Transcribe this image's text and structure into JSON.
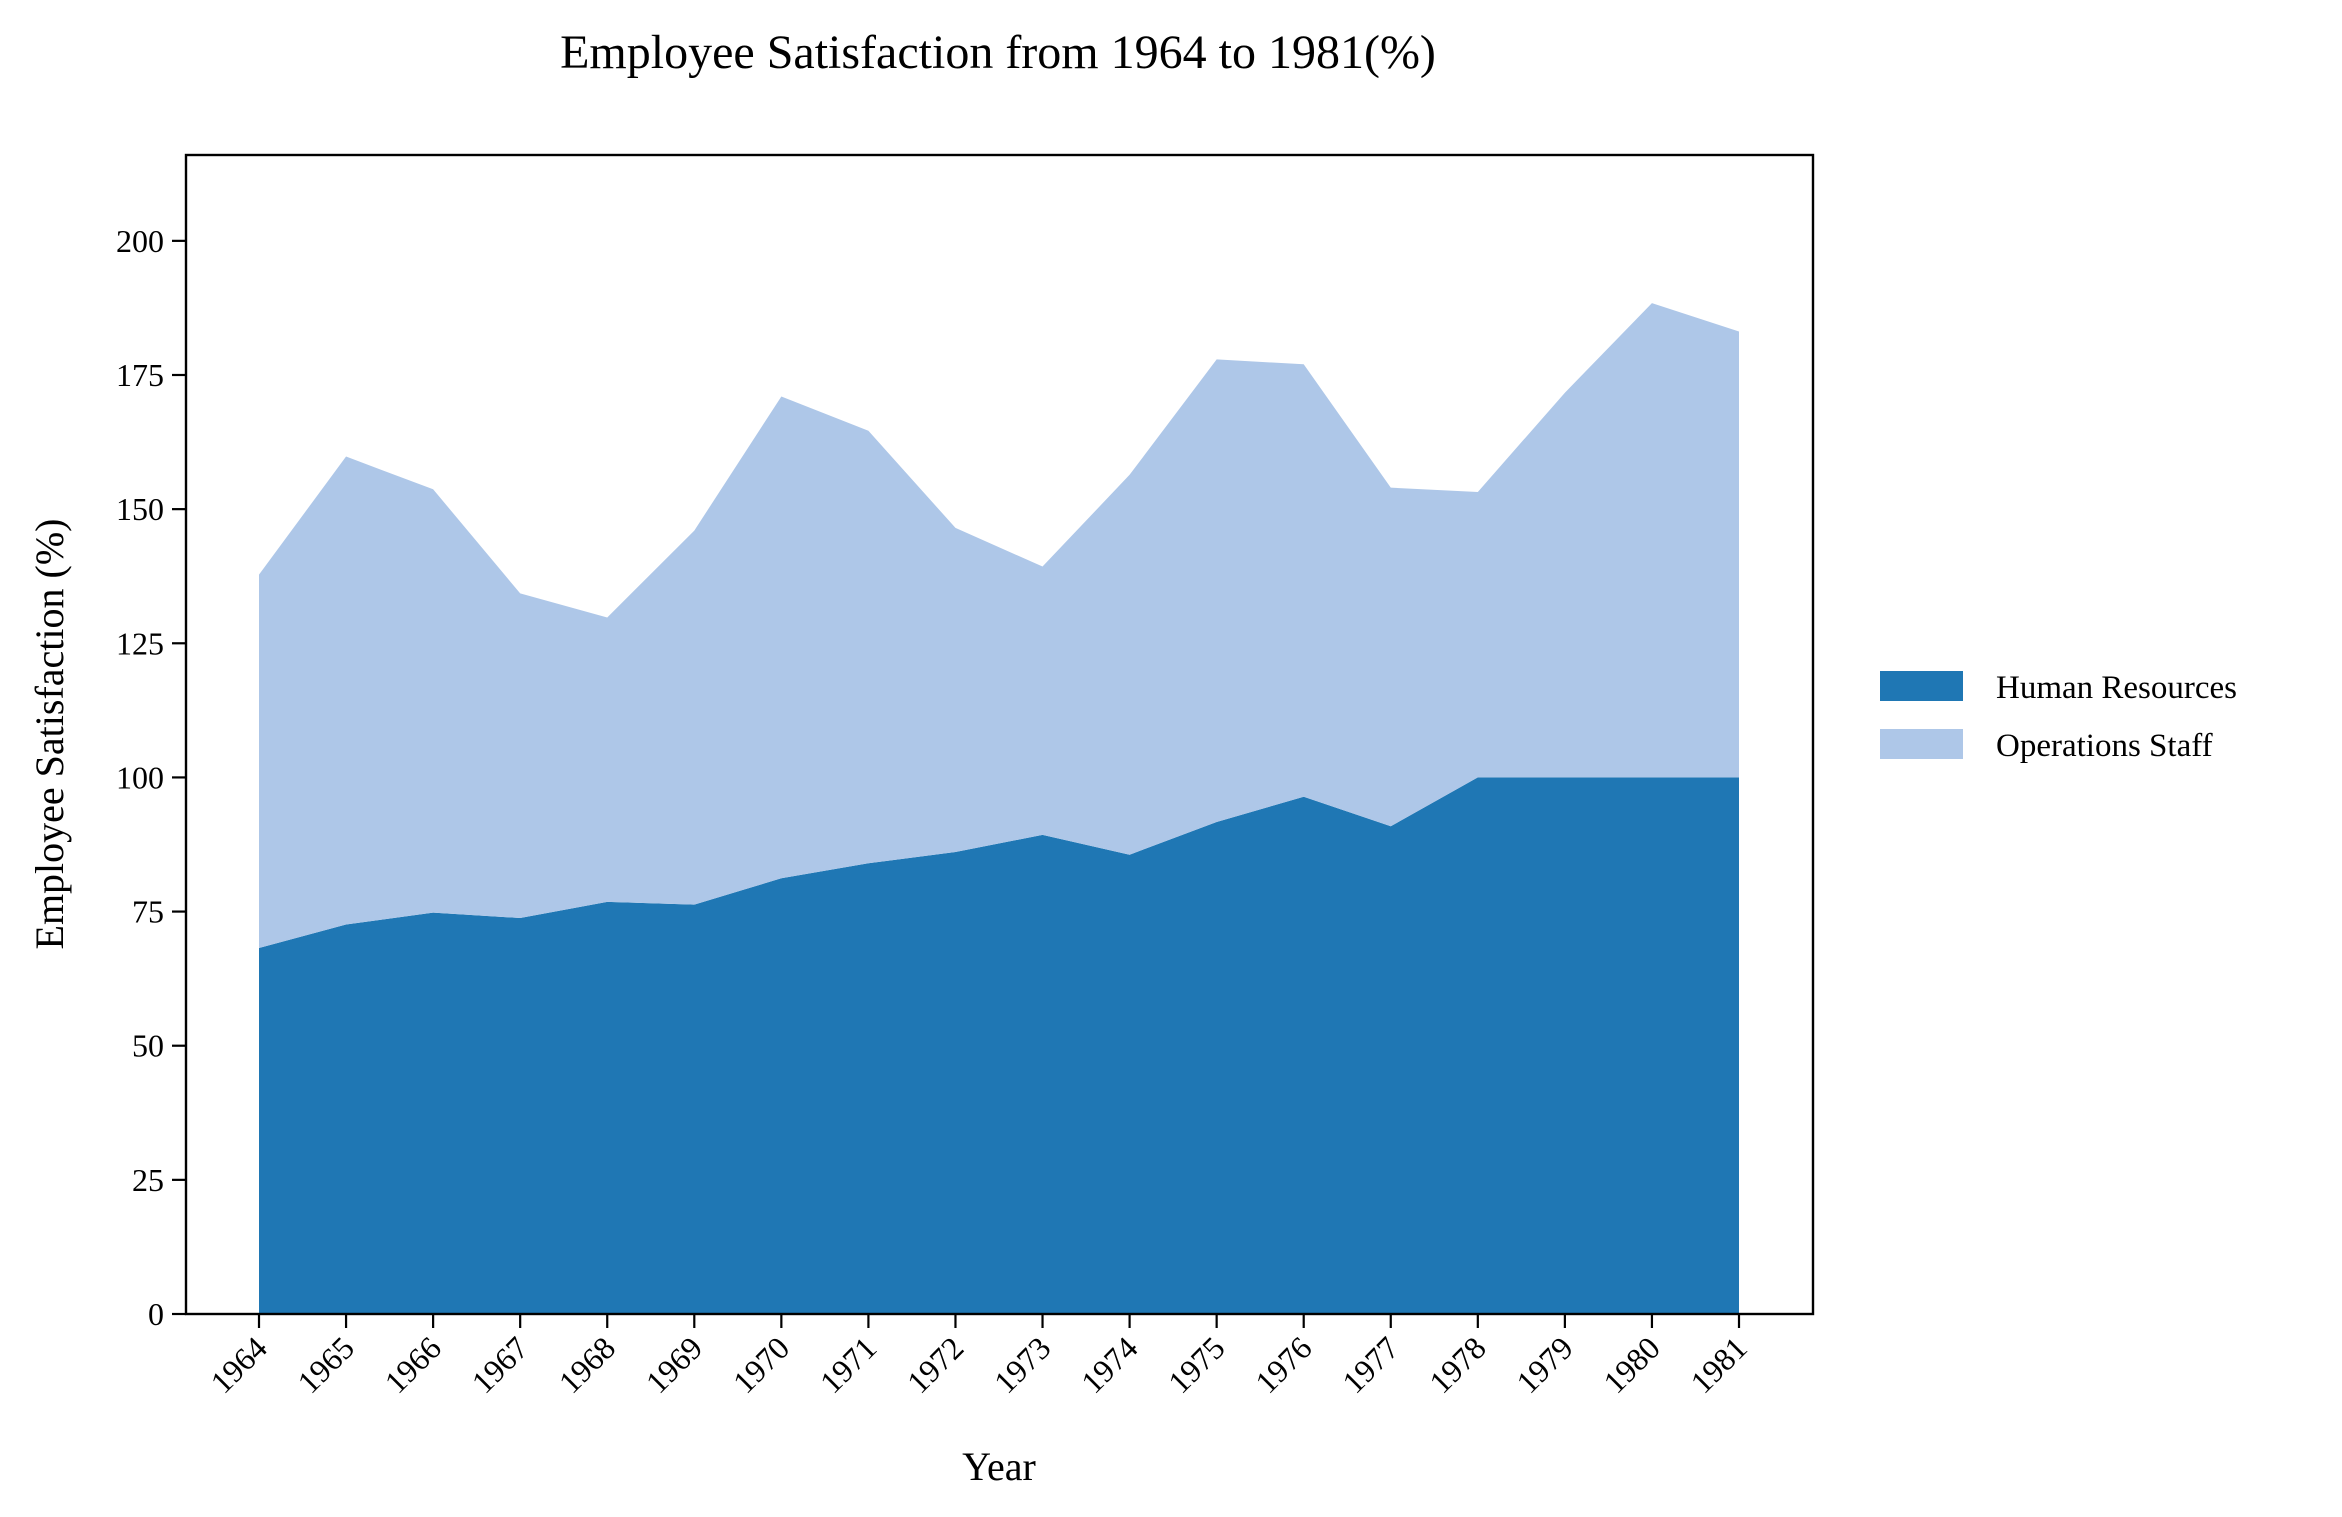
{
  "chart_data": {
    "type": "area",
    "stacked": true,
    "title": "Employee Satisfaction from 1964 to 1981(%)",
    "xlabel": "Year",
    "ylabel": "Employee Satisfaction (%)",
    "x": [
      "1964",
      "1965",
      "1966",
      "1967",
      "1968",
      "1969",
      "1970",
      "1971",
      "1972",
      "1973",
      "1974",
      "1975",
      "1976",
      "1977",
      "1978",
      "1979",
      "1980",
      "1981"
    ],
    "ylim": [
      0,
      216
    ],
    "yticks": [
      0,
      25,
      50,
      75,
      100,
      125,
      150,
      175,
      200
    ],
    "grid": false,
    "legend_position": "right",
    "series": [
      {
        "name": "Human Resources",
        "color": "#1f77b4",
        "values": [
          68.2,
          72.6,
          74.8,
          73.8,
          76.8,
          76.3,
          81.2,
          84.0,
          86.1,
          89.3,
          85.6,
          91.7,
          96.4,
          90.9,
          100.0,
          100.0,
          100.0,
          100.0
        ]
      },
      {
        "name": "Operations Staff",
        "color": "#aec7e8",
        "values": [
          69.6,
          87.2,
          78.9,
          60.5,
          53.0,
          69.7,
          89.8,
          80.6,
          60.4,
          50.0,
          70.8,
          86.2,
          80.6,
          63.1,
          53.2,
          71.7,
          88.4,
          83.1
        ]
      }
    ]
  }
}
